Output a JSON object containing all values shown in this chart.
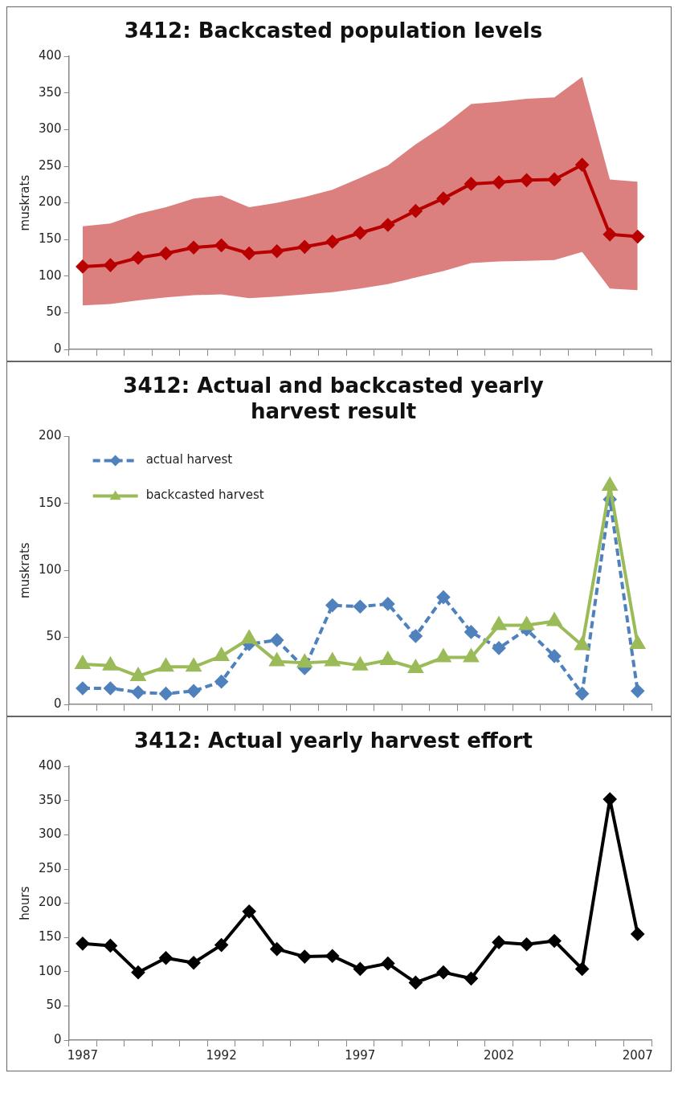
{
  "chart_data": [
    {
      "type": "line",
      "title": "3412: Backcasted population levels",
      "ylabel": "muskrats",
      "categories": [
        null,
        null,
        null,
        null,
        null,
        null,
        null,
        null,
        null,
        null,
        null,
        null,
        null,
        null,
        null,
        null,
        null,
        null,
        null,
        null,
        null
      ],
      "ylim": [
        0,
        400
      ],
      "yticks": [
        0,
        50,
        100,
        150,
        200,
        250,
        300,
        350,
        400
      ],
      "grid": false,
      "tick_labels": "y",
      "marker": "diamond",
      "series": [
        {
          "color": "#b80000",
          "values": [
            113,
            115,
            125,
            131,
            139,
            142,
            131,
            134,
            140,
            147,
            159,
            170,
            189,
            206,
            226,
            228,
            231,
            232,
            252,
            157,
            154
          ],
          "lower": [
            60,
            62,
            67,
            71,
            74,
            75,
            70,
            72,
            75,
            78,
            83,
            89,
            98,
            107,
            118,
            120,
            121,
            122,
            133,
            83,
            81
          ],
          "upper": [
            168,
            172,
            185,
            194,
            206,
            210,
            194,
            200,
            208,
            218,
            234,
            251,
            280,
            305,
            335,
            338,
            342,
            344,
            372,
            232,
            229
          ]
        }
      ]
    },
    {
      "type": "line",
      "title": "3412: Actual and backcasted yearly harvest result",
      "ylabel": "muskrats",
      "categories": [
        null,
        null,
        null,
        null,
        null,
        null,
        null,
        null,
        null,
        null,
        null,
        null,
        null,
        null,
        null,
        null,
        null,
        null,
        null,
        null,
        null
      ],
      "ylim": [
        0,
        200
      ],
      "yticks": [
        0,
        50,
        100,
        150,
        200
      ],
      "grid": false,
      "tick_labels": "y",
      "legend": "top left",
      "series": [
        {
          "name": "actual harvest",
          "color": "#4f81bd",
          "line_style": "dashed",
          "marker": "diamond",
          "values": [
            12,
            12,
            9,
            8,
            10,
            17,
            45,
            48,
            27,
            74,
            73,
            75,
            51,
            80,
            54,
            42,
            56,
            36,
            8,
            153,
            10
          ]
        },
        {
          "name": "backcasted harvest",
          "color": "#9bbb59",
          "line_style": "solid",
          "marker": "triangle",
          "values": [
            30,
            29,
            21,
            28,
            28,
            36,
            49,
            32,
            31,
            32,
            29,
            33,
            27,
            35,
            35,
            59,
            59,
            62,
            44,
            163,
            45
          ]
        }
      ]
    },
    {
      "type": "line",
      "title": "3412: Actual yearly harvest effort",
      "ylabel": "hours",
      "categories": [
        "1987",
        null,
        null,
        null,
        null,
        "1992",
        null,
        null,
        null,
        null,
        "1997",
        null,
        null,
        null,
        null,
        "2002",
        null,
        null,
        null,
        null,
        "2007"
      ],
      "ylim": [
        0,
        400
      ],
      "yticks": [
        0,
        50,
        100,
        150,
        200,
        250,
        300,
        350,
        400
      ],
      "grid": false,
      "marker": "diamond",
      "series": [
        {
          "color": "#000000",
          "values": [
            141,
            138,
            99,
            120,
            113,
            139,
            188,
            133,
            122,
            123,
            104,
            112,
            84,
            99,
            90,
            143,
            140,
            145,
            104,
            352,
            155
          ]
        }
      ]
    }
  ]
}
